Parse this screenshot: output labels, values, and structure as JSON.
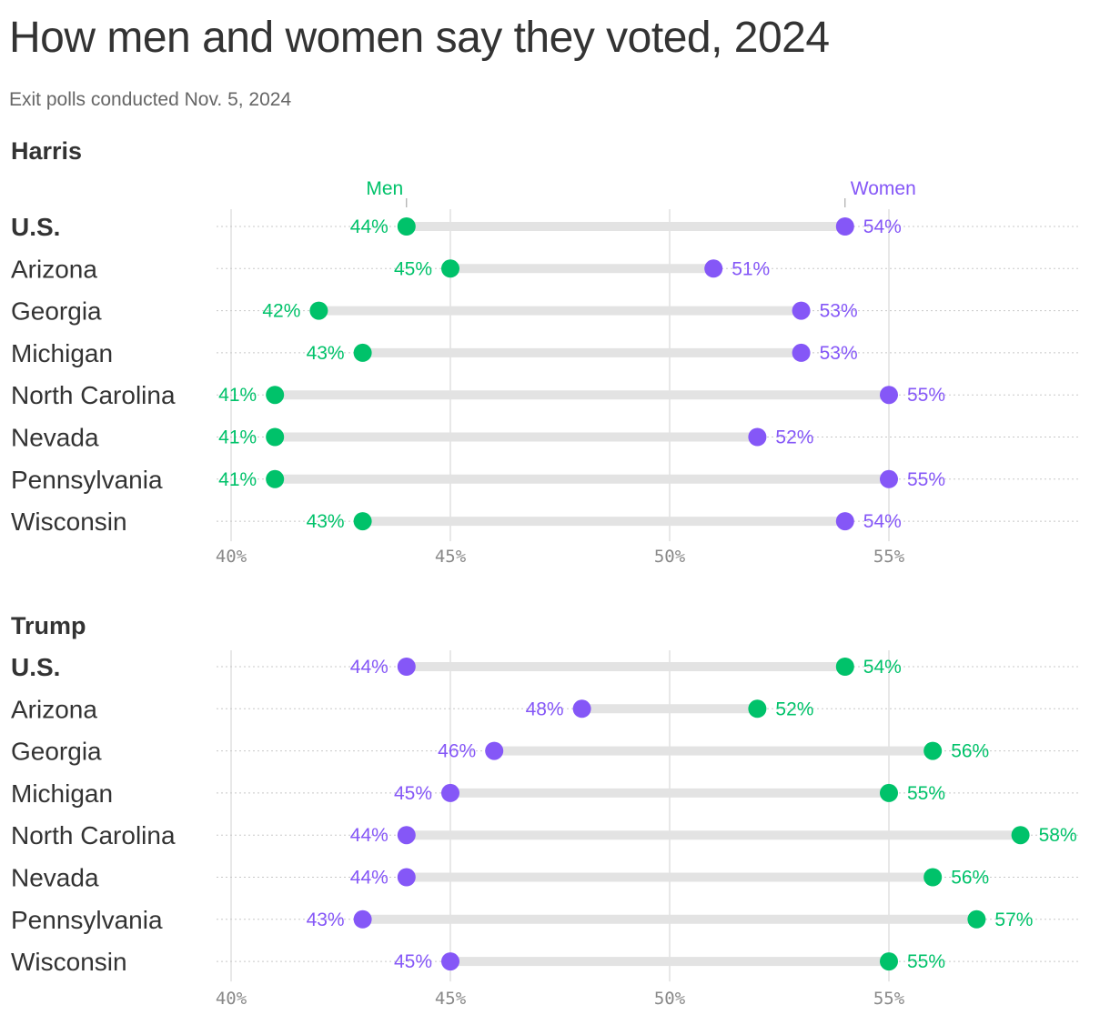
{
  "title": "How men and women say they voted, 2024",
  "subtitle": "Exit polls conducted Nov. 5, 2024",
  "colors": {
    "men": "#00c26a",
    "women": "#8557f7",
    "bar": "#e3e3e3",
    "grid": "#e0e0e0"
  },
  "chart_data": [
    {
      "type": "dumbbell",
      "title": "Harris",
      "legend": {
        "men": "Men",
        "women": "Women"
      },
      "xlim": [
        40,
        59
      ],
      "x_ticks": [
        "40%",
        "45%",
        "50%",
        "55%"
      ],
      "x_tick_values": [
        40,
        45,
        50,
        55
      ],
      "categories": [
        "U.S.",
        "Arizona",
        "Georgia",
        "Michigan",
        "North Carolina",
        "Nevada",
        "Pennsylvania",
        "Wisconsin"
      ],
      "series": [
        {
          "name": "Men",
          "values": [
            44,
            45,
            42,
            43,
            41,
            41,
            41,
            43
          ]
        },
        {
          "name": "Women",
          "values": [
            54,
            51,
            53,
            53,
            55,
            52,
            55,
            54
          ]
        }
      ]
    },
    {
      "type": "dumbbell",
      "title": "Trump",
      "xlim": [
        40,
        59
      ],
      "x_ticks": [
        "40%",
        "45%",
        "50%",
        "55%"
      ],
      "x_tick_values": [
        40,
        45,
        50,
        55
      ],
      "categories": [
        "U.S.",
        "Arizona",
        "Georgia",
        "Michigan",
        "North Carolina",
        "Nevada",
        "Pennsylvania",
        "Wisconsin"
      ],
      "series": [
        {
          "name": "Men",
          "values": [
            54,
            52,
            56,
            55,
            58,
            56,
            57,
            55
          ]
        },
        {
          "name": "Women",
          "values": [
            44,
            48,
            46,
            45,
            44,
            44,
            43,
            45
          ]
        }
      ]
    }
  ]
}
